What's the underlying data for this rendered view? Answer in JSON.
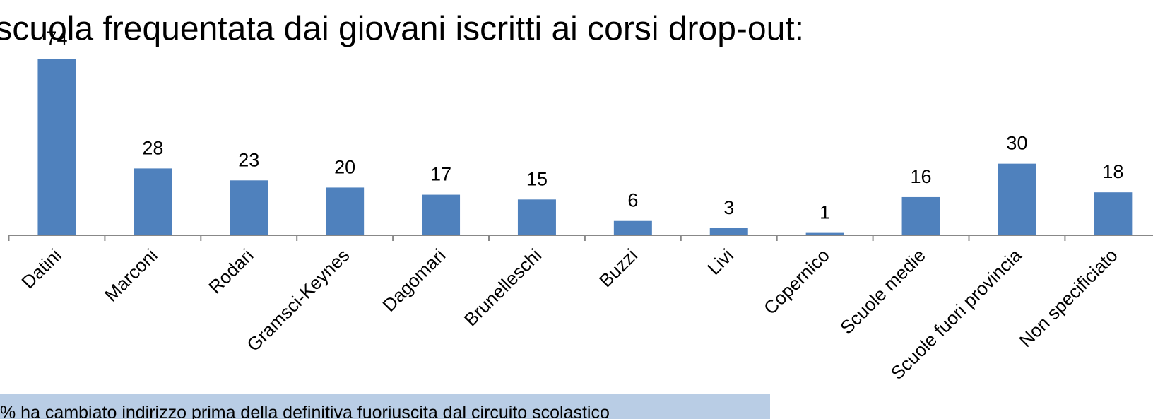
{
  "chart_data": {
    "type": "bar",
    "title": "Ultima scuola frequentata dai giovani iscritti ai corsi drop-out:",
    "categories": [
      "Datini",
      "Marconi",
      "Rodari",
      "Gramsci-Keynes",
      "Dagomari",
      "Brunelleschi",
      "Buzzi",
      "Livi",
      "Copernico",
      "Scuole medie",
      "Scuole fuori provincia",
      "Non specificiato"
    ],
    "values": [
      74,
      28,
      23,
      20,
      17,
      15,
      6,
      3,
      1,
      16,
      30,
      18
    ],
    "color": "#4f81bd"
  },
  "note": "% ha cambiato indirizzo prima della definitiva fuoriuscita dal circuito scolastico"
}
